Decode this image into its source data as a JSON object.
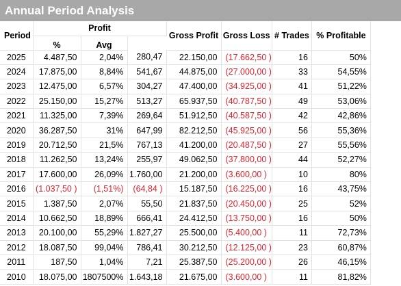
{
  "title": "Annual Period Analysis",
  "headers": {
    "period": "Period",
    "profit": "Profit",
    "pct": "%",
    "avg": "Avg",
    "gross_profit": "Gross Profit",
    "gross_loss": "Gross Loss",
    "trades": "# Trades",
    "pct_profitable": "% Profitable"
  },
  "colors": {
    "title_bar": "#a8a8a8",
    "negative": "#e0202a"
  },
  "rows": [
    {
      "period": "2025",
      "profit": "4.487,50",
      "pct": "2,04%",
      "avg": "280,47",
      "gross_profit": "22.150,00",
      "gross_loss": "(17.662,50 )",
      "trades": "16",
      "pct_profitable": "50%",
      "neg": {
        "profit": false,
        "pct": false,
        "avg": false
      }
    },
    {
      "period": "2024",
      "profit": "17.875,00",
      "pct": "8,84%",
      "avg": "541,67",
      "gross_profit": "44.875,00",
      "gross_loss": "(27.000,00 )",
      "trades": "33",
      "pct_profitable": "54,55%",
      "neg": {
        "profit": false,
        "pct": false,
        "avg": false
      }
    },
    {
      "period": "2023",
      "profit": "12.475,00",
      "pct": "6,57%",
      "avg": "304,27",
      "gross_profit": "47.400,00",
      "gross_loss": "(34.925,00 )",
      "trades": "41",
      "pct_profitable": "51,22%",
      "neg": {
        "profit": false,
        "pct": false,
        "avg": false
      }
    },
    {
      "period": "2022",
      "profit": "25.150,00",
      "pct": "15,27%",
      "avg": "513,27",
      "gross_profit": "65.937,50",
      "gross_loss": "(40.787,50 )",
      "trades": "49",
      "pct_profitable": "53,06%",
      "neg": {
        "profit": false,
        "pct": false,
        "avg": false
      }
    },
    {
      "period": "2021",
      "profit": "11.325,00",
      "pct": "7,39%",
      "avg": "269,64",
      "gross_profit": "51.912,50",
      "gross_loss": "(40.587,50 )",
      "trades": "42",
      "pct_profitable": "42,86%",
      "neg": {
        "profit": false,
        "pct": false,
        "avg": false
      }
    },
    {
      "period": "2020",
      "profit": "36.287,50",
      "pct": "31%",
      "avg": "647,99",
      "gross_profit": "82.212,50",
      "gross_loss": "(45.925,00 )",
      "trades": "56",
      "pct_profitable": "55,36%",
      "neg": {
        "profit": false,
        "pct": false,
        "avg": false
      }
    },
    {
      "period": "2019",
      "profit": "20.712,50",
      "pct": "21,5%",
      "avg": "767,13",
      "gross_profit": "41.200,00",
      "gross_loss": "(20.487,50 )",
      "trades": "27",
      "pct_profitable": "55,56%",
      "neg": {
        "profit": false,
        "pct": false,
        "avg": false
      }
    },
    {
      "period": "2018",
      "profit": "11.262,50",
      "pct": "13,24%",
      "avg": "255,97",
      "gross_profit": "49.062,50",
      "gross_loss": "(37.800,00 )",
      "trades": "44",
      "pct_profitable": "52,27%",
      "neg": {
        "profit": false,
        "pct": false,
        "avg": false
      }
    },
    {
      "period": "2017",
      "profit": "17.600,00",
      "pct": "26,09%",
      "avg": "1.760,00",
      "gross_profit": "21.200,00",
      "gross_loss": "(3.600,00 )",
      "trades": "10",
      "pct_profitable": "80%",
      "neg": {
        "profit": false,
        "pct": false,
        "avg": false
      }
    },
    {
      "period": "2016",
      "profit": "(1.037,50 )",
      "pct": "(1,51%)",
      "avg": "(64,84 )",
      "gross_profit": "15.187,50",
      "gross_loss": "(16.225,00 )",
      "trades": "16",
      "pct_profitable": "43,75%",
      "neg": {
        "profit": true,
        "pct": true,
        "avg": true
      }
    },
    {
      "period": "2015",
      "profit": "1.387,50",
      "pct": "2,07%",
      "avg": "55,50",
      "gross_profit": "21.837,50",
      "gross_loss": "(20.450,00 )",
      "trades": "25",
      "pct_profitable": "52%",
      "neg": {
        "profit": false,
        "pct": false,
        "avg": false
      }
    },
    {
      "period": "2014",
      "profit": "10.662,50",
      "pct": "18,89%",
      "avg": "666,41",
      "gross_profit": "24.412,50",
      "gross_loss": "(13.750,00 )",
      "trades": "16",
      "pct_profitable": "50%",
      "neg": {
        "profit": false,
        "pct": false,
        "avg": false
      }
    },
    {
      "period": "2013",
      "profit": "20.100,00",
      "pct": "55,29%",
      "avg": "1.827,27",
      "gross_profit": "25.500,00",
      "gross_loss": "(5.400,00 )",
      "trades": "11",
      "pct_profitable": "72,73%",
      "neg": {
        "profit": false,
        "pct": false,
        "avg": false
      }
    },
    {
      "period": "2012",
      "profit": "18.087,50",
      "pct": "99,04%",
      "avg": "786,41",
      "gross_profit": "30.212,50",
      "gross_loss": "(12.125,00 )",
      "trades": "23",
      "pct_profitable": "60,87%",
      "neg": {
        "profit": false,
        "pct": false,
        "avg": false
      }
    },
    {
      "period": "2011",
      "profit": "187,50",
      "pct": "1,04%",
      "avg": "7,21",
      "gross_profit": "25.387,50",
      "gross_loss": "(25.200,00 )",
      "trades": "26",
      "pct_profitable": "46,15%",
      "neg": {
        "profit": false,
        "pct": false,
        "avg": false
      }
    },
    {
      "period": "2010",
      "profit": "18.075,00",
      "pct": "1807500%",
      "avg": "1.643,18",
      "gross_profit": "21.675,00",
      "gross_loss": "(3.600,00 )",
      "trades": "11",
      "pct_profitable": "81,82%",
      "neg": {
        "profit": false,
        "pct": false,
        "avg": false
      }
    }
  ]
}
